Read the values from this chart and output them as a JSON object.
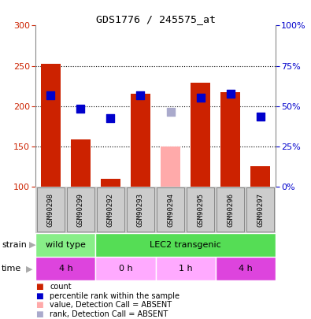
{
  "title": "GDS1776 / 245575_at",
  "samples": [
    "GSM90298",
    "GSM90299",
    "GSM90292",
    "GSM90293",
    "GSM90294",
    "GSM90295",
    "GSM90296",
    "GSM90297"
  ],
  "bar_values": [
    252,
    159,
    110,
    215,
    150,
    229,
    217,
    125
  ],
  "bar_colors": [
    "#cc2200",
    "#cc2200",
    "#cc2200",
    "#cc2200",
    "#ffaaaa",
    "#cc2200",
    "#cc2200",
    "#cc2200"
  ],
  "rank_values": [
    213,
    197,
    185,
    213,
    193,
    210,
    215,
    187
  ],
  "rank_colors": [
    "#0000cc",
    "#0000cc",
    "#0000cc",
    "#0000cc",
    "#aaaacc",
    "#0000cc",
    "#0000cc",
    "#0000cc"
  ],
  "bar_base": 100,
  "ylim_left": [
    100,
    300
  ],
  "ylim_right": [
    0,
    100
  ],
  "yticks_left": [
    100,
    150,
    200,
    250,
    300
  ],
  "yticks_right": [
    0,
    25,
    50,
    75,
    100
  ],
  "ytick_labels_right": [
    "0%",
    "25%",
    "50%",
    "75%",
    "100%"
  ],
  "hlines": [
    150,
    200,
    250
  ],
  "strain_groups": [
    {
      "label": "wild type",
      "start": 0,
      "end": 2,
      "color": "#88ee88"
    },
    {
      "label": "LEC2 transgenic",
      "start": 2,
      "end": 8,
      "color": "#55dd55"
    }
  ],
  "time_groups": [
    {
      "label": "4 h",
      "start": 0,
      "end": 2,
      "color": "#dd44dd"
    },
    {
      "label": "0 h",
      "start": 2,
      "end": 4,
      "color": "#ffaaff"
    },
    {
      "label": "1 h",
      "start": 4,
      "end": 6,
      "color": "#ffaaff"
    },
    {
      "label": "4 h",
      "start": 6,
      "end": 8,
      "color": "#dd44dd"
    }
  ],
  "legend_items": [
    {
      "label": "count",
      "color": "#cc2200"
    },
    {
      "label": "percentile rank within the sample",
      "color": "#0000cc"
    },
    {
      "label": "value, Detection Call = ABSENT",
      "color": "#ffaaaa"
    },
    {
      "label": "rank, Detection Call = ABSENT",
      "color": "#aaaacc"
    }
  ],
  "bar_width": 0.65,
  "rank_marker_size": 55,
  "tick_label_color_left": "#cc2200",
  "tick_label_color_right": "#0000cc",
  "plot_bg": "#ffffff",
  "grid_color": "#000000",
  "sample_box_color": "#cccccc",
  "sample_box_edge": "#888888"
}
